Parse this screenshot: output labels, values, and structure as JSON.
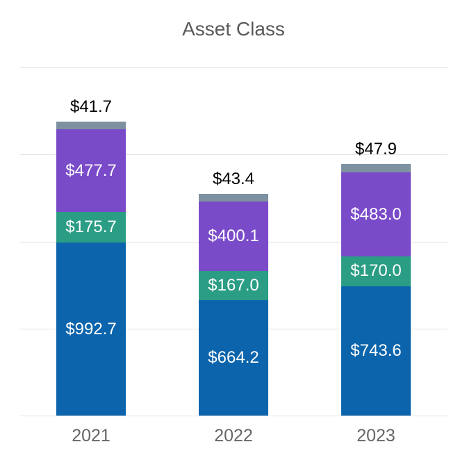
{
  "chart_data": {
    "type": "bar",
    "stacked": true,
    "title": "Asset Class",
    "title_color": "#595959",
    "categories": [
      "2021",
      "2022",
      "2023"
    ],
    "series": [
      {
        "name": "blue-segment",
        "color": "#0B64AC",
        "values": [
          992.7,
          664.2,
          743.6
        ],
        "labels": [
          "$992.7",
          "$664.2",
          "$743.6"
        ],
        "label_position": "inside",
        "label_color": "#ffffff"
      },
      {
        "name": "green-segment",
        "color": "#2A9D84",
        "values": [
          175.7,
          167.0,
          170.0
        ],
        "labels": [
          "$175.7",
          "$167.0",
          "$170.0"
        ],
        "label_position": "inside",
        "label_color": "#ffffff"
      },
      {
        "name": "purple-segment",
        "color": "#7A4BC9",
        "values": [
          477.7,
          400.1,
          483.0
        ],
        "labels": [
          "$477.7",
          "$400.1",
          "$483.0"
        ],
        "label_position": "inside",
        "label_color": "#ffffff"
      },
      {
        "name": "gray-segment",
        "color": "#7D91A1",
        "values": [
          41.7,
          43.4,
          47.9
        ],
        "labels": [
          "$41.7",
          "$43.4",
          "$47.9"
        ],
        "label_position": "above",
        "label_color": "#000000"
      }
    ],
    "ylim": [
      0,
      2000
    ],
    "gridline_step": 500,
    "grid": true,
    "legend": false,
    "xlabel": "",
    "ylabel": "",
    "y_tick_labels_shown": false,
    "tick_label_color": "#666666",
    "gridline_color": "#e4e4e4"
  }
}
